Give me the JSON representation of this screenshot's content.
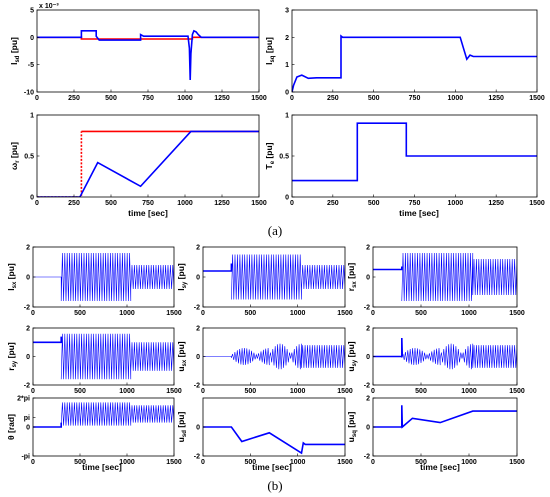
{
  "figure": {
    "caption_a": "(a)",
    "caption_b": "(b)"
  },
  "chart_data": [
    {
      "id": "isd",
      "type": "line",
      "ylabel": "I_sd [pu]",
      "exponent": "x 10⁻³",
      "xlim": [
        0,
        1500
      ],
      "ylim": [
        -10,
        5
      ],
      "xticks": [
        "0",
        "250",
        "500",
        "750",
        "1000",
        "1250",
        "1500"
      ],
      "yticks": [
        "5",
        "0",
        "-5",
        "-10"
      ],
      "series": [
        {
          "color": "#ff0000",
          "x": [
            0,
            300,
            300,
            1050,
            1050,
            1500
          ],
          "y": [
            0,
            0,
            -0.3,
            -0.3,
            0,
            0
          ]
        },
        {
          "color": "#0000ff",
          "x": [
            0,
            295,
            300,
            300,
            400,
            400,
            420,
            700,
            700,
            720,
            1020,
            1030,
            1035,
            1040,
            1050,
            1060,
            1075,
            1090,
            1110,
            1500
          ],
          "y": [
            0,
            0,
            0,
            1.2,
            1.2,
            0.2,
            -0.5,
            -0.5,
            0.5,
            0.2,
            0.2,
            -2,
            -7.8,
            -3,
            0.5,
            1.2,
            1.0,
            0.5,
            0,
            0
          ]
        }
      ]
    },
    {
      "id": "isq",
      "type": "line",
      "ylabel": "I_sq [pu]",
      "xlim": [
        0,
        1500
      ],
      "ylim": [
        0,
        3
      ],
      "xticks": [
        "0",
        "250",
        "500",
        "750",
        "1000",
        "1250",
        "1500"
      ],
      "yticks": [
        "3",
        "2",
        "1",
        "0"
      ],
      "series": [
        {
          "color": "#0000ff",
          "x": [
            0,
            10,
            30,
            60,
            100,
            150,
            300,
            300,
            310,
            1030,
            1050,
            1070,
            1090,
            1110,
            1500
          ],
          "y": [
            0,
            0.25,
            0.55,
            0.62,
            0.5,
            0.52,
            0.52,
            2.05,
            2.0,
            2.0,
            1.6,
            1.2,
            1.35,
            1.3,
            1.3
          ]
        }
      ]
    },
    {
      "id": "omega",
      "type": "line",
      "ylabel": "ω_r [pu]",
      "xlim": [
        0,
        1500
      ],
      "ylim": [
        0,
        1
      ],
      "xticks": [
        "0",
        "250",
        "500",
        "750",
        "1000",
        "1250",
        "1500"
      ],
      "yticks": [
        "1",
        "0.5",
        "0"
      ],
      "series": [
        {
          "color": "#ff0000",
          "dash": true,
          "x": [
            0,
            290,
            300,
            300
          ],
          "y": [
            0,
            0,
            0,
            0.8
          ]
        },
        {
          "color": "#ff0000",
          "x": [
            300,
            1500
          ],
          "y": [
            0.8,
            0.8
          ]
        },
        {
          "color": "#0000ff",
          "x": [
            0,
            290,
            410,
            700,
            1040,
            1500
          ],
          "y": [
            0,
            0,
            0.42,
            0.13,
            0.8,
            0.8
          ]
        }
      ]
    },
    {
      "id": "te",
      "type": "line",
      "ylabel": "T_e [pu]",
      "xlim": [
        0,
        1500
      ],
      "ylim": [
        0,
        1
      ],
      "xticks": [
        "0",
        "250",
        "500",
        "750",
        "1000",
        "1250",
        "1500"
      ],
      "yticks": [
        "1",
        "0.5",
        "0"
      ],
      "series": [
        {
          "color": "#0000ff",
          "x": [
            0,
            400,
            400,
            700,
            700,
            1500
          ],
          "y": [
            0.2,
            0.2,
            0.9,
            0.9,
            0.5,
            0.5
          ]
        }
      ]
    },
    {
      "id": "isx",
      "type": "line",
      "ylabel": "I_sx [pu]",
      "xlim": [
        0,
        1500
      ],
      "ylim": [
        -2,
        2
      ],
      "xticks": [
        "0",
        "500",
        "1000",
        "1500"
      ],
      "yticks": [
        "2",
        "0",
        "-2"
      ],
      "series": [
        {
          "color": "#0000ff",
          "osc": [
            [
              0,
              300,
              0
            ],
            [
              300,
              1040,
              1.6
            ],
            [
              1040,
              1500,
              0.8
            ]
          ]
        }
      ]
    },
    {
      "id": "isy",
      "type": "line",
      "ylabel": "I_sy [pu]",
      "xlim": [
        0,
        1500
      ],
      "ylim": [
        -2,
        2
      ],
      "xticks": [
        "0",
        "500",
        "1000",
        "1500"
      ],
      "yticks": [
        "2",
        "0",
        "-2"
      ],
      "series": [
        {
          "color": "#0000ff",
          "x": [
            0,
            290,
            300,
            300
          ],
          "y": [
            0.4,
            0.4,
            0.4,
            0.9
          ]
        },
        {
          "color": "#0000ff",
          "osc": [
            [
              300,
              1040,
              1.5
            ],
            [
              1040,
              1500,
              0.8
            ]
          ]
        }
      ]
    },
    {
      "id": "rsx",
      "type": "line",
      "ylabel": "r_sx [pu]",
      "xlim": [
        0,
        1500
      ],
      "ylim": [
        -2,
        2
      ],
      "xticks": [
        "0",
        "500",
        "1000",
        "1500"
      ],
      "yticks": [
        "2",
        "0",
        "-2"
      ],
      "series": [
        {
          "color": "#0000ff",
          "x": [
            0,
            290,
            300,
            300
          ],
          "y": [
            0.5,
            0.5,
            0.5,
            0.7
          ]
        },
        {
          "color": "#0000ff",
          "osc": [
            [
              300,
              1040,
              1.6
            ],
            [
              1040,
              1500,
              1.2
            ]
          ]
        }
      ]
    },
    {
      "id": "rsy",
      "type": "line",
      "ylabel": "r_sy [pu]",
      "xlim": [
        0,
        1500
      ],
      "ylim": [
        -2,
        2
      ],
      "xticks": [
        "0",
        "500",
        "1000",
        "1500"
      ],
      "yticks": [
        "2",
        "0",
        "-2"
      ],
      "series": [
        {
          "color": "#0000ff",
          "x": [
            0,
            290,
            300,
            300
          ],
          "y": [
            1.0,
            1.0,
            1.0,
            1.4
          ]
        },
        {
          "color": "#0000ff",
          "osc": [
            [
              300,
              1040,
              1.6
            ],
            [
              1040,
              1500,
              1.0
            ]
          ]
        }
      ]
    },
    {
      "id": "usx",
      "type": "line",
      "ylabel": "u_sx [pu]",
      "xlim": [
        0,
        1500
      ],
      "ylim": [
        -2,
        2
      ],
      "xticks": [
        "0",
        "500",
        "1000",
        "1500"
      ],
      "yticks": [
        "2",
        "0",
        "-2"
      ],
      "series": [
        {
          "color": "#0000ff",
          "env": [
            [
              0,
              300,
              0
            ],
            [
              300,
              700,
              0.1,
              0.6
            ],
            [
              700,
              1040,
              0.15,
              0.9
            ],
            [
              1040,
              1500,
              0.8
            ]
          ]
        }
      ]
    },
    {
      "id": "usy",
      "type": "line",
      "ylabel": "u_sy [pu]",
      "xlim": [
        0,
        1500
      ],
      "ylim": [
        -2,
        2
      ],
      "xticks": [
        "0",
        "500",
        "1000",
        "1500"
      ],
      "yticks": [
        "2",
        "0",
        "-2"
      ],
      "series": [
        {
          "color": "#0000ff",
          "x": [
            0,
            290,
            300,
            300,
            305
          ],
          "y": [
            0,
            0,
            0,
            1.3,
            0
          ]
        },
        {
          "color": "#0000ff",
          "env": [
            [
              300,
              700,
              0.1,
              0.6
            ],
            [
              700,
              1040,
              0.15,
              0.9
            ],
            [
              1040,
              1500,
              0.8
            ]
          ]
        }
      ]
    },
    {
      "id": "theta",
      "type": "line",
      "ylabel": "θ [rad]",
      "xlim": [
        0,
        1500
      ],
      "ylim": [
        -2,
        2
      ],
      "xticks": [
        "0",
        "500",
        "1000",
        "1500"
      ],
      "yticks": [
        "2*pi",
        "pi",
        "0",
        "-pi"
      ],
      "series": [
        {
          "color": "#0000ff",
          "x": [
            0,
            290,
            300,
            300
          ],
          "y": [
            0,
            0,
            0,
            0.3
          ]
        },
        {
          "color": "#0000ff",
          "osc": [
            [
              300,
              1040,
              0.8,
              0.9
            ],
            [
              1040,
              1500,
              0.6,
              0.9
            ]
          ]
        }
      ]
    },
    {
      "id": "usd",
      "type": "line",
      "ylabel": "u_sd [pu]",
      "xlim": [
        0,
        1500
      ],
      "ylim": [
        -2,
        2
      ],
      "xticks": [
        "0",
        "500",
        "1000",
        "1500"
      ],
      "yticks": [
        "0",
        "-2"
      ],
      "series": [
        {
          "color": "#0000ff",
          "x": [
            0,
            300,
            410,
            700,
            1040,
            1060,
            1080,
            1500
          ],
          "y": [
            0,
            0,
            -1.0,
            -0.4,
            -1.8,
            -1.1,
            -1.2,
            -1.2
          ]
        }
      ]
    },
    {
      "id": "usq",
      "type": "line",
      "ylabel": "u_sq [pu]",
      "xlim": [
        0,
        1500
      ],
      "ylim": [
        -2,
        2
      ],
      "xticks": [
        "0",
        "500",
        "1000",
        "1500"
      ],
      "yticks": [
        "2",
        "0",
        "-2"
      ],
      "series": [
        {
          "color": "#0000ff",
          "x": [
            0,
            295,
            300,
            300,
            305,
            410,
            700,
            1040,
            1500
          ],
          "y": [
            0,
            0,
            0,
            1.5,
            0,
            0.6,
            0.3,
            1.1,
            1.1
          ]
        }
      ]
    }
  ],
  "xlabels": {
    "a_left": "time [sec]",
    "a_right": "time [sec]",
    "b_1": "time [sec]",
    "b_2": "time [sec]",
    "b_3": "time [sec]"
  }
}
